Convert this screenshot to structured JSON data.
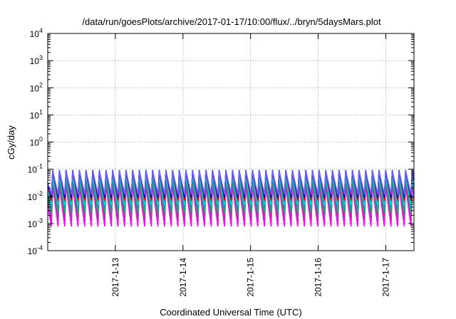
{
  "chart_data": {
    "type": "line",
    "title": "/data/run/goesPlots/archive/2017-01-17/10:00/flux/../bryn/5daysMars.plot",
    "xlabel": "Coordinated Universal Time (UTC)",
    "ylabel": "cGy/day",
    "y_scale": "log",
    "ylim": [
      0.0001,
      10000
    ],
    "xlim": [
      "2017-01-12 00:00",
      "2017-01-17 10:00"
    ],
    "grid": true,
    "y_ticks": [
      {
        "base": "10",
        "exp": "4"
      },
      {
        "base": "10",
        "exp": "3"
      },
      {
        "base": "10",
        "exp": "2"
      },
      {
        "base": "10",
        "exp": "1"
      },
      {
        "base": "10",
        "exp": "0"
      },
      {
        "base": "10",
        "exp": "-1"
      },
      {
        "base": "10",
        "exp": "-2"
      },
      {
        "base": "10",
        "exp": "-3"
      },
      {
        "base": "10",
        "exp": "-4"
      }
    ],
    "x_ticks": [
      "2017-1-13",
      "2017-1-14",
      "2017-1-15",
      "2017-1-16",
      "2017-1-17"
    ],
    "x_tick_dates": [
      "2017-01-13",
      "2017-01-14",
      "2017-01-15",
      "2017-01-16",
      "2017-01-17"
    ],
    "oscillation_periods_per_day": 10.1,
    "series": [
      {
        "color": "#ff00ff",
        "peak": 0.025,
        "trough": 0.0008
      },
      {
        "color": "#ff00ff",
        "peak": 0.03,
        "trough": 0.0011
      },
      {
        "color": "#a040a0",
        "peak": 0.035,
        "trough": 0.0015
      },
      {
        "color": "#00bb55",
        "peak": 0.045,
        "trough": 0.0025
      },
      {
        "color": "#00aaaa",
        "peak": 0.055,
        "trough": 0.0035
      },
      {
        "color": "#00dddd",
        "peak": 0.06,
        "trough": 0.005
      },
      {
        "color": "#ff0000",
        "peak": 0.085,
        "trough": 0.007
      },
      {
        "color": "#0000cc",
        "peak": 0.09,
        "trough": 0.009
      },
      {
        "color": "#6666ff",
        "peak": 0.085,
        "trough": 0.012
      }
    ]
  }
}
